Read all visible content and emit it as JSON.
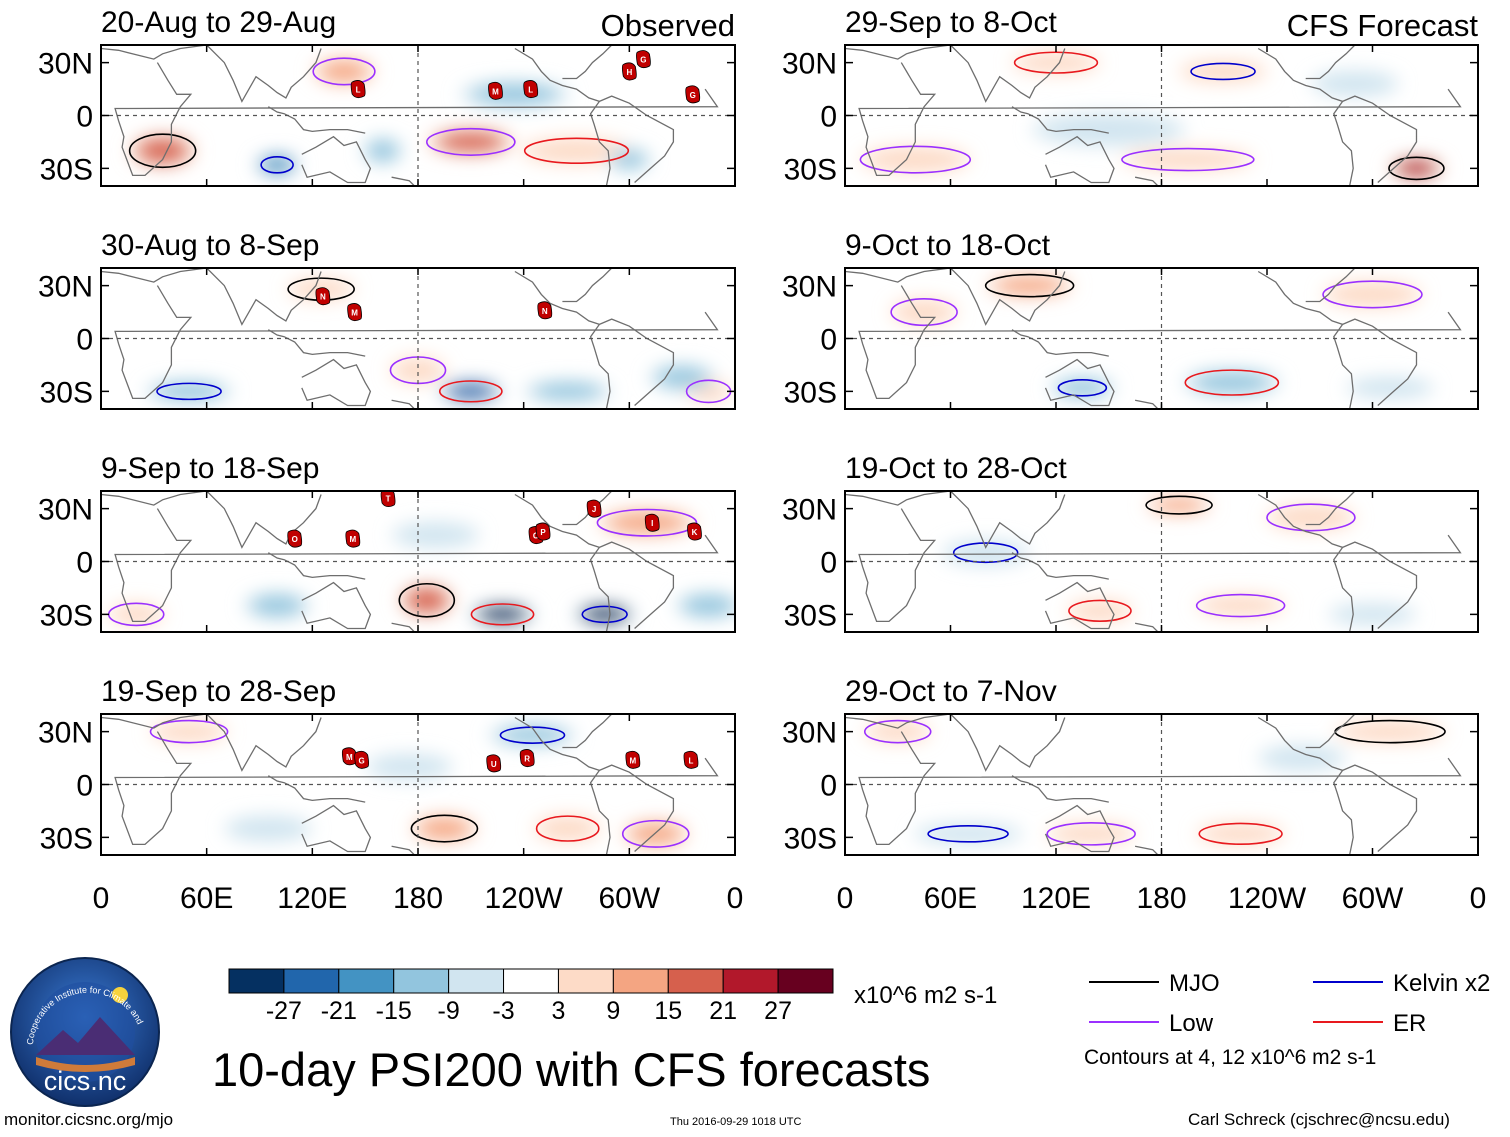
{
  "header": {
    "left_label": "Observed",
    "right_label": "CFS Forecast"
  },
  "title": "10-day PSI200 with CFS forecasts",
  "footer": {
    "url": "monitor.cicsnc.org/mjo",
    "timestamp": "Thu 2016-09-29 1018 UTC",
    "credit": "Carl Schreck (cjschrec@ncsu.edu)"
  },
  "logo": {
    "name": "cics.nc",
    "ring_text": "Cooperative Institute for Climate and Satellites"
  },
  "colors": {
    "positive": "#d6604d",
    "negative": "#4393c3",
    "mjo": "#000000",
    "low": "#9b30ff",
    "kelvin": "#0000cc",
    "er": "#e8191e",
    "land": "#6e6e6e",
    "storm": "#c00000"
  },
  "colorbar": {
    "levels": [
      "-27",
      "-21",
      "-15",
      "-9",
      "-3",
      "3",
      "9",
      "15",
      "21",
      "27"
    ],
    "colors": [
      "#053061",
      "#2166ac",
      "#4393c3",
      "#92c5de",
      "#d1e5f0",
      "#ffffff",
      "#fddbc7",
      "#f4a582",
      "#d6604d",
      "#b2182b",
      "#67001f"
    ],
    "units": "x10^6 m2 s-1"
  },
  "legend": {
    "items": [
      {
        "label": "MJO",
        "color": "#000000"
      },
      {
        "label": "Kelvin x2",
        "color": "#0000cc"
      },
      {
        "label": "Low",
        "color": "#9b30ff"
      },
      {
        "label": "ER",
        "color": "#e8191e"
      }
    ],
    "note": "Contours at 4, 12 x10^6 m2 s-1"
  },
  "chart_data": {
    "type": "heatmap",
    "variable": "PSI200 anomaly (10-day mean)",
    "x_ticks": [
      "0",
      "60E",
      "120E",
      "180",
      "120W",
      "60W",
      "0"
    ],
    "y_ticks": [
      "30N",
      "0",
      "30S"
    ],
    "x_range_deg_east": [
      0,
      360
    ],
    "y_range_deg": [
      -40,
      40
    ],
    "panels": [
      {
        "id": "obs-1",
        "title": "20-Aug to 29-Aug",
        "kind": "observed",
        "anoms": [
          {
            "lon": 35,
            "lat": -20,
            "v": 18,
            "w": 30,
            "h": 15
          },
          {
            "lon": 138,
            "lat": 25,
            "v": 12,
            "w": 28,
            "h": 12
          },
          {
            "lon": 210,
            "lat": -15,
            "v": 16,
            "w": 40,
            "h": 12
          },
          {
            "lon": 270,
            "lat": -20,
            "v": 9,
            "w": 50,
            "h": 12
          },
          {
            "lon": 100,
            "lat": -28,
            "v": -18,
            "w": 20,
            "h": 10
          },
          {
            "lon": 160,
            "lat": -20,
            "v": -9,
            "w": 18,
            "h": 12
          },
          {
            "lon": 235,
            "lat": 12,
            "v": -9,
            "w": 50,
            "h": 12
          },
          {
            "lon": 300,
            "lat": -25,
            "v": -9,
            "w": 20,
            "h": 10
          }
        ],
        "storms": [
          {
            "lon": 146,
            "lat": 15,
            "l": "L"
          },
          {
            "lon": 224,
            "lat": 14,
            "l": "M"
          },
          {
            "lon": 244,
            "lat": 15,
            "l": "L"
          },
          {
            "lon": 300,
            "lat": 25,
            "l": "H"
          },
          {
            "lon": 308,
            "lat": 32,
            "l": "G"
          },
          {
            "lon": 336,
            "lat": 12,
            "l": "G"
          }
        ]
      },
      {
        "id": "obs-2",
        "title": "30-Aug to 8-Sep",
        "kind": "observed",
        "anoms": [
          {
            "lon": 125,
            "lat": 28,
            "v": 9,
            "w": 30,
            "h": 10
          },
          {
            "lon": 180,
            "lat": -18,
            "v": 6,
            "w": 25,
            "h": 12
          },
          {
            "lon": 345,
            "lat": -30,
            "v": 9,
            "w": 20,
            "h": 10
          },
          {
            "lon": 210,
            "lat": -30,
            "v": -21,
            "w": 30,
            "h": 10
          },
          {
            "lon": 50,
            "lat": -30,
            "v": -9,
            "w": 40,
            "h": 10
          },
          {
            "lon": 265,
            "lat": -30,
            "v": -9,
            "w": 40,
            "h": 10
          },
          {
            "lon": 330,
            "lat": -22,
            "v": -9,
            "w": 30,
            "h": 12
          }
        ],
        "storms": [
          {
            "lon": 126,
            "lat": 24,
            "l": "N"
          },
          {
            "lon": 144,
            "lat": 15,
            "l": "M"
          },
          {
            "lon": 252,
            "lat": 16,
            "l": "N"
          }
        ]
      },
      {
        "id": "obs-3",
        "title": "9-Sep to 18-Sep",
        "kind": "observed",
        "anoms": [
          {
            "lon": 185,
            "lat": -22,
            "v": 18,
            "w": 25,
            "h": 15
          },
          {
            "lon": 20,
            "lat": -30,
            "v": 9,
            "w": 25,
            "h": 10
          },
          {
            "lon": 310,
            "lat": 22,
            "v": 12,
            "w": 45,
            "h": 12
          },
          {
            "lon": 228,
            "lat": -30,
            "v": -27,
            "w": 30,
            "h": 10
          },
          {
            "lon": 286,
            "lat": -30,
            "v": -27,
            "w": 28,
            "h": 10
          },
          {
            "lon": 100,
            "lat": -25,
            "v": -9,
            "w": 30,
            "h": 12
          },
          {
            "lon": 345,
            "lat": -25,
            "v": -9,
            "w": 30,
            "h": 12
          },
          {
            "lon": 190,
            "lat": 15,
            "v": -6,
            "w": 40,
            "h": 12
          }
        ],
        "storms": [
          {
            "lon": 163,
            "lat": 36,
            "l": "T"
          },
          {
            "lon": 110,
            "lat": 13,
            "l": "O"
          },
          {
            "lon": 143,
            "lat": 13,
            "l": "M"
          },
          {
            "lon": 247,
            "lat": 15,
            "l": "O"
          },
          {
            "lon": 251,
            "lat": 17,
            "l": "P"
          },
          {
            "lon": 280,
            "lat": 30,
            "l": "J"
          },
          {
            "lon": 313,
            "lat": 22,
            "l": "I"
          },
          {
            "lon": 337,
            "lat": 17,
            "l": "K"
          }
        ]
      },
      {
        "id": "obs-4",
        "title": "19-Sep to 28-Sep",
        "kind": "observed",
        "anoms": [
          {
            "lon": 195,
            "lat": -25,
            "v": 15,
            "w": 30,
            "h": 12
          },
          {
            "lon": 315,
            "lat": -28,
            "v": 12,
            "w": 30,
            "h": 12
          },
          {
            "lon": 50,
            "lat": 30,
            "v": 9,
            "w": 35,
            "h": 10
          },
          {
            "lon": 265,
            "lat": -25,
            "v": 9,
            "w": 30,
            "h": 12
          },
          {
            "lon": 245,
            "lat": 28,
            "v": -9,
            "w": 40,
            "h": 10
          },
          {
            "lon": 175,
            "lat": 10,
            "v": -6,
            "w": 40,
            "h": 12
          },
          {
            "lon": 95,
            "lat": -25,
            "v": -6,
            "w": 40,
            "h": 12
          }
        ],
        "storms": [
          {
            "lon": 141,
            "lat": 16,
            "l": "M"
          },
          {
            "lon": 148,
            "lat": 14,
            "l": "G"
          },
          {
            "lon": 223,
            "lat": 12,
            "l": "U"
          },
          {
            "lon": 242,
            "lat": 15,
            "l": "R"
          },
          {
            "lon": 302,
            "lat": 14,
            "l": "M"
          },
          {
            "lon": 335,
            "lat": 14,
            "l": "L"
          }
        ]
      },
      {
        "id": "fc-1",
        "title": "29-Sep to 8-Oct",
        "kind": "forecast",
        "anoms": [
          {
            "lon": 325,
            "lat": -30,
            "v": 27,
            "w": 25,
            "h": 10
          },
          {
            "lon": 40,
            "lat": -25,
            "v": 9,
            "w": 50,
            "h": 12
          },
          {
            "lon": 195,
            "lat": -25,
            "v": 6,
            "w": 60,
            "h": 10
          },
          {
            "lon": 120,
            "lat": 30,
            "v": 9,
            "w": 40,
            "h": 10
          },
          {
            "lon": 215,
            "lat": 25,
            "v": 6,
            "w": 40,
            "h": 10
          },
          {
            "lon": 150,
            "lat": -8,
            "v": -6,
            "w": 70,
            "h": 15
          },
          {
            "lon": 290,
            "lat": 18,
            "v": -6,
            "w": 40,
            "h": 12
          }
        ],
        "storms": []
      },
      {
        "id": "fc-2",
        "title": "9-Oct to 18-Oct",
        "kind": "forecast",
        "anoms": [
          {
            "lon": 105,
            "lat": 30,
            "v": 12,
            "w": 40,
            "h": 10
          },
          {
            "lon": 300,
            "lat": 25,
            "v": 9,
            "w": 45,
            "h": 12
          },
          {
            "lon": 45,
            "lat": 15,
            "v": 6,
            "w": 30,
            "h": 12
          },
          {
            "lon": 220,
            "lat": -25,
            "v": -9,
            "w": 45,
            "h": 12
          },
          {
            "lon": 135,
            "lat": -28,
            "v": -9,
            "w": 30,
            "h": 10
          },
          {
            "lon": 310,
            "lat": -28,
            "v": -6,
            "w": 40,
            "h": 10
          }
        ],
        "storms": []
      },
      {
        "id": "fc-3",
        "title": "19-Oct to 28-Oct",
        "kind": "forecast",
        "anoms": [
          {
            "lon": 190,
            "lat": 32,
            "v": 12,
            "w": 30,
            "h": 8
          },
          {
            "lon": 265,
            "lat": 25,
            "v": 9,
            "w": 40,
            "h": 12
          },
          {
            "lon": 225,
            "lat": -25,
            "v": 6,
            "w": 40,
            "h": 10
          },
          {
            "lon": 145,
            "lat": -28,
            "v": 6,
            "w": 30,
            "h": 10
          },
          {
            "lon": 80,
            "lat": 5,
            "v": -6,
            "w": 40,
            "h": 12
          },
          {
            "lon": 300,
            "lat": -30,
            "v": -6,
            "w": 40,
            "h": 10
          }
        ],
        "storms": []
      },
      {
        "id": "fc-4",
        "title": "29-Oct to 7-Nov",
        "kind": "forecast",
        "anoms": [
          {
            "lon": 310,
            "lat": 30,
            "v": 9,
            "w": 50,
            "h": 10
          },
          {
            "lon": 30,
            "lat": 30,
            "v": 6,
            "w": 30,
            "h": 10
          },
          {
            "lon": 140,
            "lat": -28,
            "v": 6,
            "w": 40,
            "h": 10
          },
          {
            "lon": 225,
            "lat": -28,
            "v": 6,
            "w": 40,
            "h": 10
          },
          {
            "lon": 70,
            "lat": -28,
            "v": -6,
            "w": 50,
            "h": 10
          },
          {
            "lon": 260,
            "lat": 15,
            "v": -6,
            "w": 40,
            "h": 12
          }
        ],
        "storms": []
      }
    ]
  }
}
